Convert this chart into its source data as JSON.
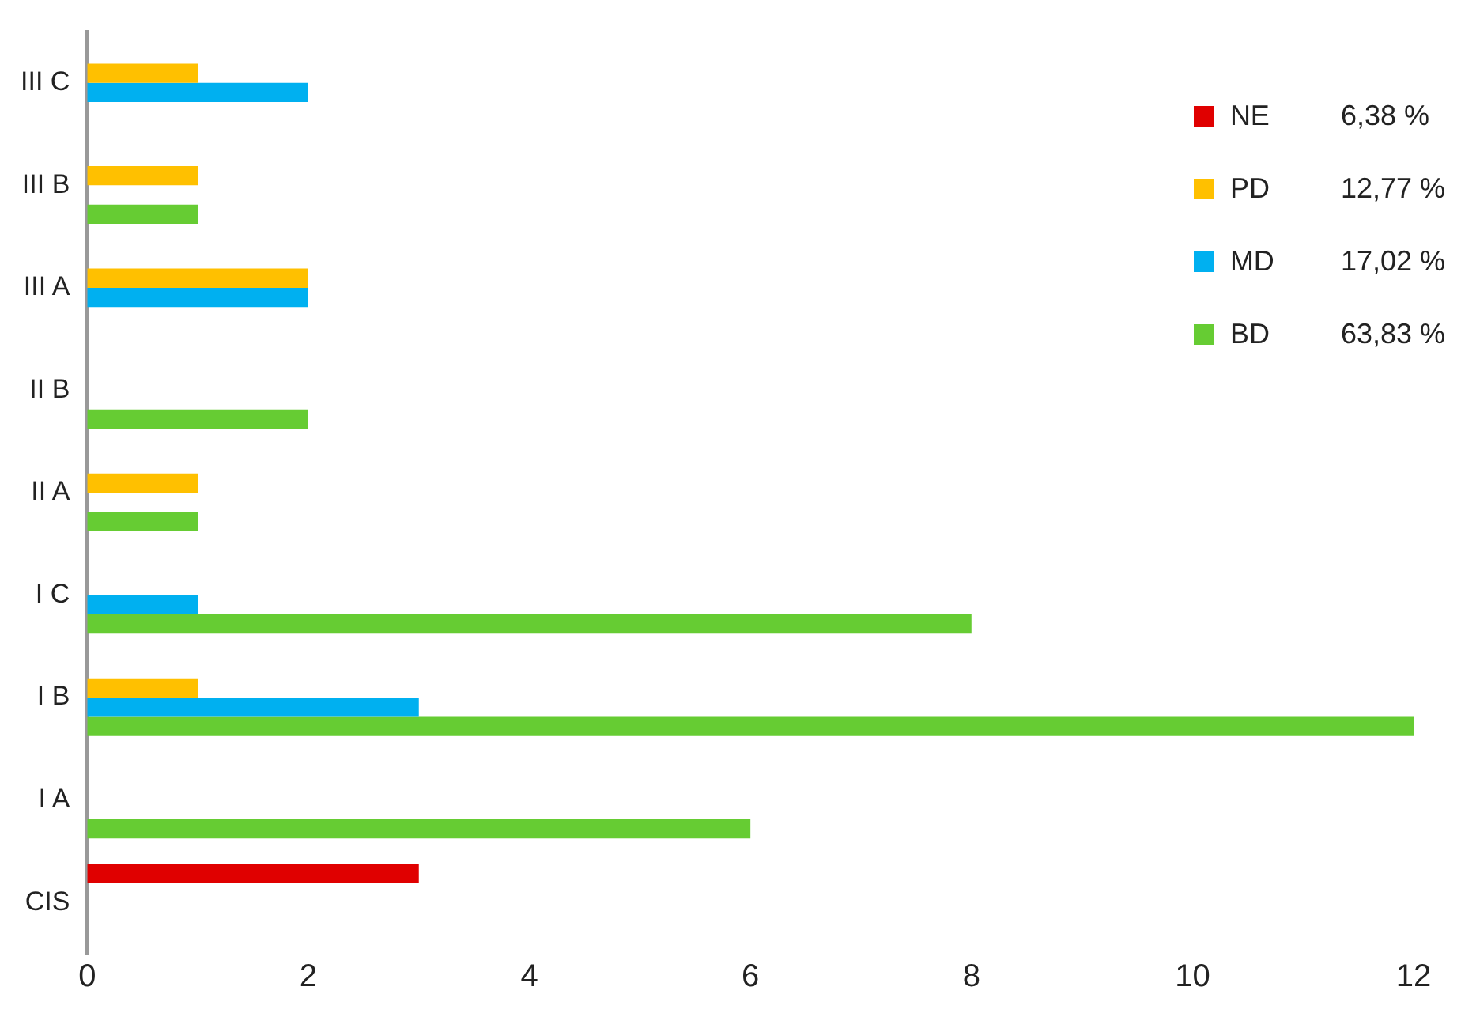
{
  "chart_data": {
    "type": "bar",
    "orientation": "horizontal",
    "categories": [
      "III C",
      "III B",
      "III A",
      "II B",
      "II A",
      "I C",
      "I B",
      "I A",
      "CIS"
    ],
    "series": [
      {
        "name": "NE",
        "color": "#e00000",
        "values": [
          0,
          0,
          0,
          0,
          0,
          0,
          0,
          0,
          3
        ]
      },
      {
        "name": "PD",
        "color": "#ffc000",
        "values": [
          1,
          1,
          2,
          0,
          1,
          0,
          1,
          0,
          0
        ]
      },
      {
        "name": "MD",
        "color": "#00b0f0",
        "values": [
          2,
          0,
          2,
          0,
          0,
          1,
          3,
          0,
          0
        ]
      },
      {
        "name": "BD",
        "color": "#66cc33",
        "values": [
          0,
          1,
          0,
          2,
          1,
          8,
          12,
          6,
          0
        ]
      }
    ],
    "annotations": [
      "6,38 %",
      "12,77 %",
      "17,02 %",
      "63,83 %"
    ],
    "xlim": [
      0,
      12
    ],
    "xticks": [
      0,
      2,
      4,
      6,
      8,
      10,
      12
    ],
    "grid": false,
    "legend": "top right"
  }
}
